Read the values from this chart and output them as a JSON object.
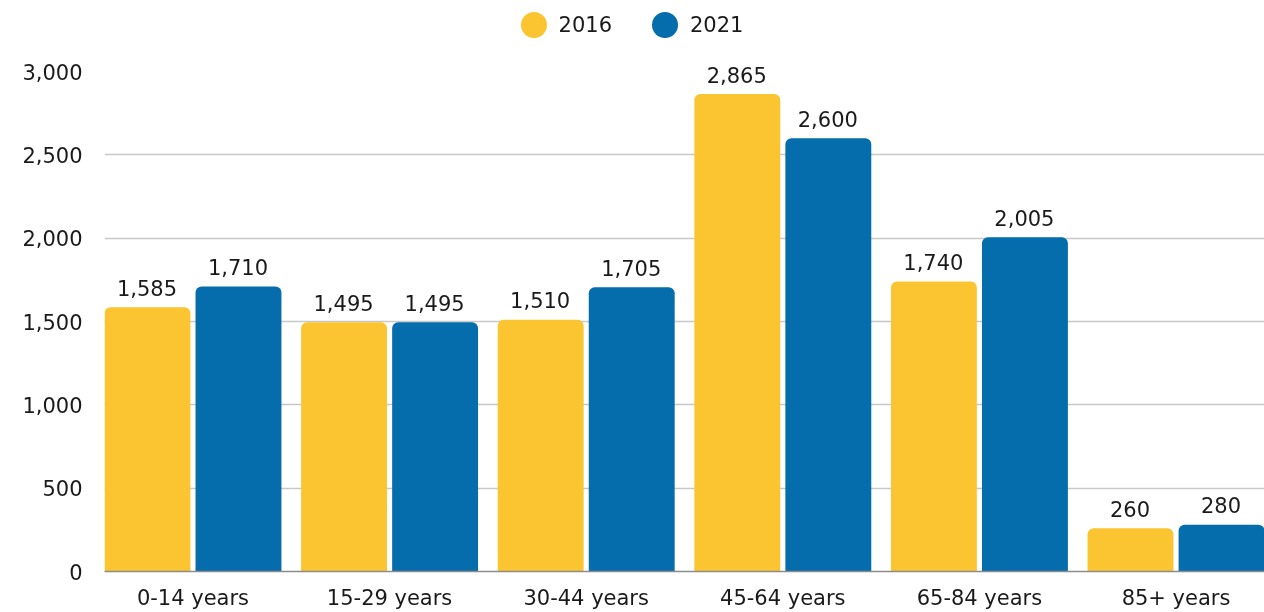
{
  "chart_data": {
    "type": "bar",
    "categories": [
      "0-14 years",
      "15-29 years",
      "30-44 years",
      "45-64 years",
      "65-84 years",
      "85+ years"
    ],
    "series": [
      {
        "name": "2016",
        "color": "#fbc531",
        "values": [
          1585,
          1495,
          1510,
          2865,
          1740,
          260
        ],
        "value_labels": [
          "1,585",
          "1,495",
          "1,510",
          "2,865",
          "1,740",
          "260"
        ]
      },
      {
        "name": "2021",
        "color": "#066dac",
        "values": [
          1710,
          1495,
          1705,
          2600,
          2005,
          280
        ],
        "value_labels": [
          "1,710",
          "1,495",
          "1,705",
          "2,600",
          "2,005",
          "280"
        ]
      }
    ],
    "ylim": [
      0,
      3000
    ],
    "yticks": [
      0,
      500,
      {
        "value": 1000,
        "label": "1,000"
      },
      {
        "value": 1500,
        "label": "1,500"
      },
      {
        "value": 2000,
        "label": "2,000"
      },
      {
        "value": 2500,
        "label": "2,500"
      },
      {
        "value": 3000,
        "label": "3,000"
      }
    ],
    "grid": "y",
    "legend": "top"
  }
}
